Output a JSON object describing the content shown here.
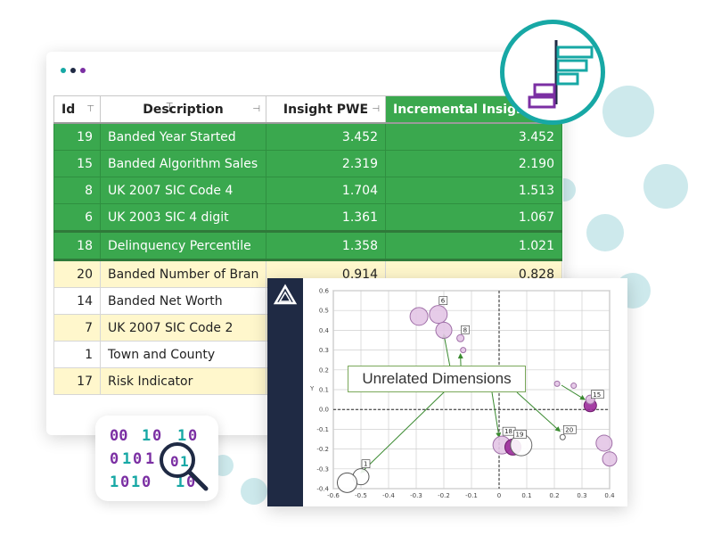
{
  "colors": {
    "accent_green": "#3aa84e",
    "row_yellow": "#fff7cc",
    "teal": "#17a8a5",
    "purple": "#7b2fa3",
    "navy": "#1f2a44"
  },
  "window": {
    "dot_colors": [
      "#17a8a5",
      "#1f2a44",
      "#7b2fa3"
    ]
  },
  "table": {
    "columns": [
      {
        "label": "Id",
        "pin": "⊤"
      },
      {
        "label": "Description",
        "pin": "⊣"
      },
      {
        "label": "Insight PWE",
        "pin": "⊣"
      },
      {
        "label": "Incremental Insigh",
        "pin": ""
      }
    ],
    "rows": [
      {
        "id": "19",
        "description": "Banded Year Started",
        "insight_pwe": "3.452",
        "incremental": "3.452",
        "style": "g"
      },
      {
        "id": "15",
        "description": "Banded Algorithm Sales",
        "insight_pwe": "2.319",
        "incremental": "2.190",
        "style": "g"
      },
      {
        "id": "8",
        "description": "UK 2007 SIC Code 4",
        "insight_pwe": "1.704",
        "incremental": "1.513",
        "style": "g"
      },
      {
        "id": "6",
        "description": "UK 2003 SIC 4 digit",
        "insight_pwe": "1.361",
        "incremental": "1.067",
        "style": "g"
      },
      {
        "id": "18",
        "description": "Delinquency Percentile",
        "insight_pwe": "1.358",
        "incremental": "1.021",
        "style": "g sep"
      },
      {
        "id": "20",
        "description": "Banded Number of Bran",
        "insight_pwe": "0.914",
        "incremental": "0.828",
        "style": "y sep"
      },
      {
        "id": "14",
        "description": "Banded Net Worth",
        "insight_pwe": "",
        "incremental": "",
        "style": "w"
      },
      {
        "id": "7",
        "description": "UK 2007 SIC Code 2",
        "insight_pwe": "",
        "incremental": "",
        "style": "y"
      },
      {
        "id": "1",
        "description": "Town and County",
        "insight_pwe": "",
        "incremental": "",
        "style": "w"
      },
      {
        "id": "17",
        "description": "Risk Indicator",
        "insight_pwe": "",
        "incremental": "",
        "style": "y"
      }
    ]
  },
  "chart": {
    "callout": "Unrelated Dimensions",
    "ylabel": "Y"
  },
  "chart_data": {
    "type": "scatter",
    "xlim": [
      -0.6,
      0.4
    ],
    "ylim": [
      -0.4,
      0.6
    ],
    "xticks": [
      "-0.6",
      "-0.5",
      "-0.4",
      "-0.3",
      "-0.2",
      "-0.1",
      "0",
      "0.1",
      "0.2",
      "0.3",
      "0.4"
    ],
    "yticks": [
      "0.6",
      "0.5",
      "0.4",
      "0.3",
      "0.2",
      "0.1",
      "0.0",
      "-0.1",
      "-0.2",
      "-0.3",
      "-0.4"
    ],
    "ylabel": "Y",
    "grid": true,
    "annotation": "Unrelated Dimensions",
    "points": [
      {
        "label": "1",
        "x": -0.5,
        "y": -0.34,
        "r": 9,
        "fill": "#ffffff",
        "stroke": "#555555"
      },
      {
        "label": "",
        "x": -0.55,
        "y": -0.37,
        "r": 11,
        "fill": "#ffffff",
        "stroke": "#555555"
      },
      {
        "label": "6",
        "x": -0.22,
        "y": 0.48,
        "r": 10,
        "fill": "#e3c5e6",
        "stroke": "#a070a8"
      },
      {
        "label": "",
        "x": -0.29,
        "y": 0.47,
        "r": 10,
        "fill": "#e3c5e6",
        "stroke": "#a070a8"
      },
      {
        "label": "",
        "x": -0.2,
        "y": 0.4,
        "r": 9,
        "fill": "#e3c5e6",
        "stroke": "#a070a8"
      },
      {
        "label": "8",
        "x": -0.14,
        "y": 0.36,
        "r": 4,
        "fill": "#e3c5e6",
        "stroke": "#a070a8"
      },
      {
        "label": "",
        "x": -0.13,
        "y": 0.3,
        "r": 3,
        "fill": "#e3c5e6",
        "stroke": "#a070a8"
      },
      {
        "label": "18",
        "x": 0.01,
        "y": -0.18,
        "r": 10,
        "fill": "#e3c5e6",
        "stroke": "#a070a8"
      },
      {
        "label": "19",
        "x": 0.05,
        "y": -0.19,
        "r": 9,
        "fill": "#9b2a9a",
        "stroke": "#6d1c6c"
      },
      {
        "label": "",
        "x": 0.08,
        "y": -0.18,
        "r": 12,
        "fill": "#ffffff",
        "stroke": "#666666"
      },
      {
        "label": "20",
        "x": 0.23,
        "y": -0.14,
        "r": 3,
        "fill": "#ffffff",
        "stroke": "#666666"
      },
      {
        "label": "15",
        "x": 0.33,
        "y": 0.02,
        "r": 7,
        "fill": "#9b2a9a",
        "stroke": "#6d1c6c"
      },
      {
        "label": "",
        "x": 0.33,
        "y": 0.05,
        "r": 5,
        "fill": "#e3c5e6",
        "stroke": "#a070a8"
      },
      {
        "label": "",
        "x": 0.21,
        "y": 0.13,
        "r": 3,
        "fill": "#e3c5e6",
        "stroke": "#a070a8"
      },
      {
        "label": "",
        "x": 0.27,
        "y": 0.12,
        "r": 3,
        "fill": "#e3c5e6",
        "stroke": "#a070a8"
      },
      {
        "label": "",
        "x": 0.38,
        "y": -0.17,
        "r": 9,
        "fill": "#e3c5e6",
        "stroke": "#a070a8"
      },
      {
        "label": "",
        "x": 0.4,
        "y": -0.25,
        "r": 8,
        "fill": "#e3c5e6",
        "stroke": "#a070a8"
      }
    ],
    "arrows_to": [
      {
        "x": -0.5,
        "y": -0.32
      },
      {
        "x": -0.2,
        "y": 0.38
      },
      {
        "x": -0.14,
        "y": 0.28
      },
      {
        "x": 0.0,
        "y": -0.14
      },
      {
        "x": 0.22,
        "y": -0.11
      },
      {
        "x": 0.31,
        "y": 0.05
      }
    ]
  }
}
